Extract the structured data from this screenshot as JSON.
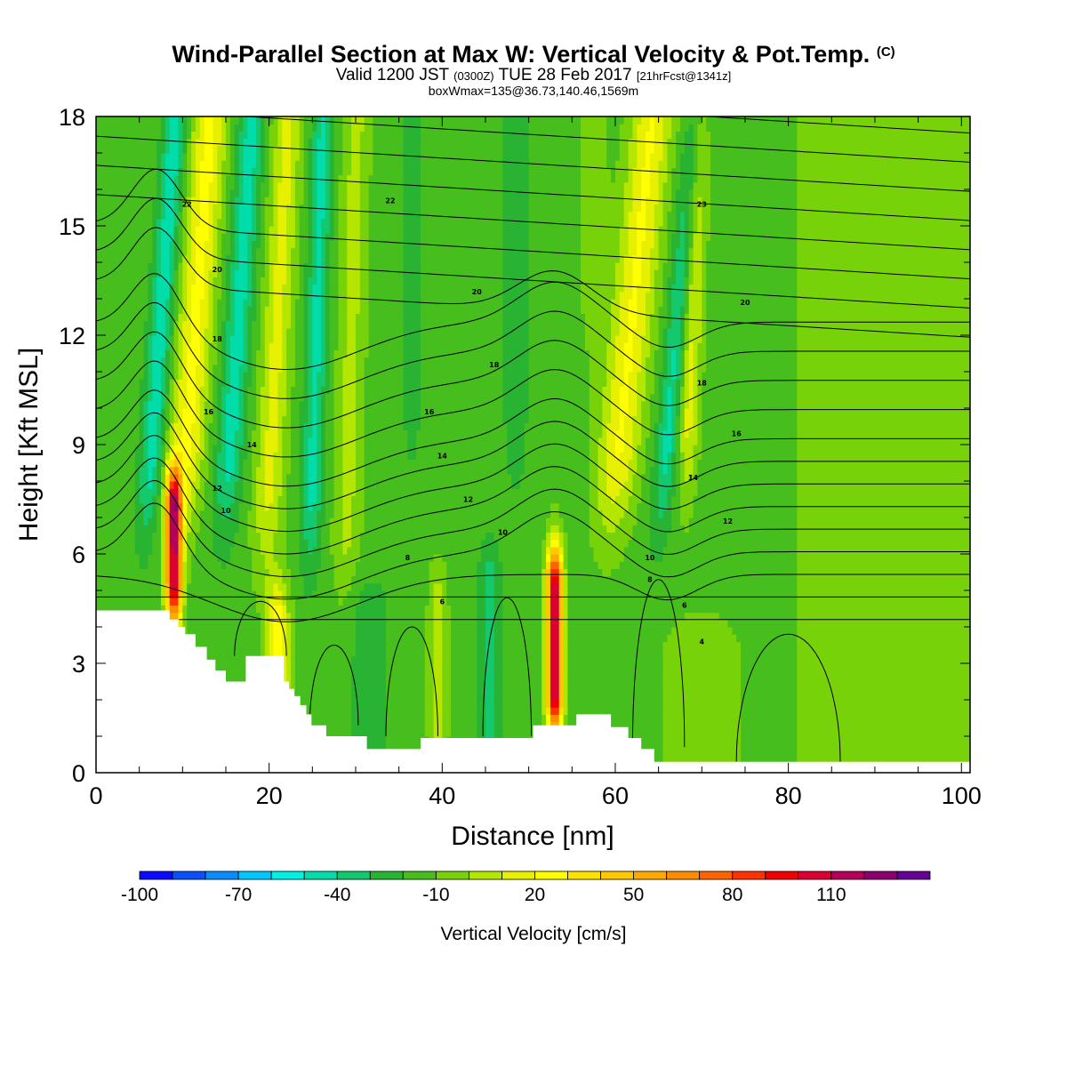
{
  "header": {
    "title": "Wind-Parallel Section at Max W: Vertical Velocity & Pot.Temp.",
    "title_mark": "(C)",
    "valid_prefix": "Valid 1200 JST",
    "valid_utc": "(0300Z)",
    "valid_date": "TUE 28 Feb 2017",
    "valid_fcst": "[21hrFcst@1341z]",
    "box_info": "boxWmax=135@36.73,140.46,1569m"
  },
  "chart_data": {
    "type": "heatmap",
    "xlabel": "Distance [nm]",
    "ylabel": "Height [Kft MSL]",
    "xlim": [
      0,
      101
    ],
    "ylim": [
      0,
      18
    ],
    "x_ticks": [
      "0",
      "20",
      "40",
      "60",
      "80",
      "100"
    ],
    "y_ticks": [
      "0",
      "3",
      "6",
      "9",
      "12",
      "15",
      "18"
    ],
    "grid": false,
    "colorbar": {
      "title": "Vertical Velocity [cm/s]",
      "labels": [
        "-100",
        "-70",
        "-40",
        "-10",
        "20",
        "50",
        "80",
        "110"
      ],
      "label_values": [
        -100,
        -70,
        -40,
        -10,
        20,
        50,
        80,
        110
      ],
      "vmin": -100,
      "vmax": 130,
      "step": 10,
      "colors": [
        "#0a0aff",
        "#0a50ff",
        "#0a8cff",
        "#00c8ff",
        "#00f0e6",
        "#00dcaa",
        "#14c86e",
        "#28b432",
        "#46be1e",
        "#78d20a",
        "#b4e600",
        "#e6f000",
        "#ffff00",
        "#ffe100",
        "#ffc800",
        "#ffaa00",
        "#ff8c00",
        "#ff6400",
        "#ff3200",
        "#f00000",
        "#dc0032",
        "#b4005a",
        "#8c006e",
        "#640096"
      ]
    },
    "contour_field": "Potential temperature",
    "contour_labels": [
      {
        "text": "22",
        "x": 10.5,
        "y": 15.6
      },
      {
        "text": "20",
        "x": 14,
        "y": 13.8
      },
      {
        "text": "18",
        "x": 14,
        "y": 11.9
      },
      {
        "text": "16",
        "x": 13,
        "y": 9.9
      },
      {
        "text": "14",
        "x": 18,
        "y": 9.0
      },
      {
        "text": "12",
        "x": 14,
        "y": 7.8
      },
      {
        "text": "10",
        "x": 15,
        "y": 7.2
      },
      {
        "text": "8",
        "x": 36,
        "y": 5.9
      },
      {
        "text": "6",
        "x": 40,
        "y": 4.7
      },
      {
        "text": "22",
        "x": 34,
        "y": 15.7
      },
      {
        "text": "20",
        "x": 44,
        "y": 13.2
      },
      {
        "text": "18",
        "x": 46,
        "y": 11.2
      },
      {
        "text": "16",
        "x": 38.5,
        "y": 9.9
      },
      {
        "text": "14",
        "x": 40,
        "y": 8.7
      },
      {
        "text": "12",
        "x": 43,
        "y": 7.5
      },
      {
        "text": "10",
        "x": 47,
        "y": 6.6
      },
      {
        "text": "23",
        "x": 70,
        "y": 15.6
      },
      {
        "text": "20",
        "x": 75,
        "y": 12.9
      },
      {
        "text": "18",
        "x": 70,
        "y": 10.7
      },
      {
        "text": "16",
        "x": 74,
        "y": 9.3
      },
      {
        "text": "14",
        "x": 69,
        "y": 8.1
      },
      {
        "text": "12",
        "x": 73,
        "y": 6.9
      },
      {
        "text": "10",
        "x": 64,
        "y": 5.9
      },
      {
        "text": "8",
        "x": 64,
        "y": 5.3
      },
      {
        "text": "6",
        "x": 68,
        "y": 4.6
      },
      {
        "text": "4",
        "x": 70,
        "y": 3.6
      }
    ]
  }
}
